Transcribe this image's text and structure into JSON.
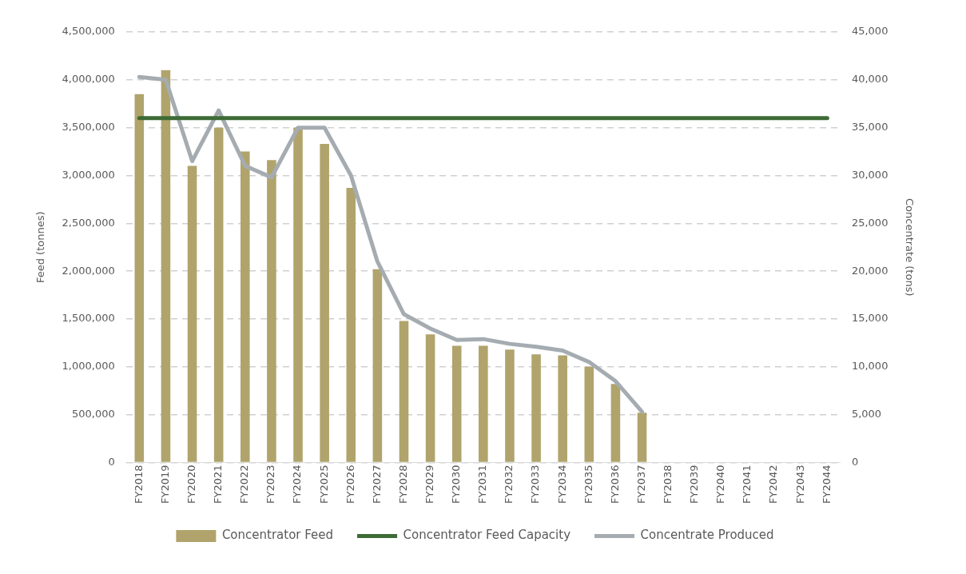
{
  "chart_data": {
    "type": "bar",
    "categories": [
      "FY2018",
      "FY2019",
      "FY2020",
      "FY2021",
      "FY2022",
      "FY2023",
      "FY2024",
      "FY2025",
      "FY2026",
      "FY2027",
      "FY2028",
      "FY2029",
      "FY2030",
      "FY2031",
      "FY2032",
      "FY2033",
      "FY2034",
      "FY2035",
      "FY2036",
      "FY2037",
      "FY2038",
      "FY2039",
      "FY2040",
      "FY2041",
      "FY2042",
      "FY2043",
      "FY2044"
    ],
    "ylabel": "Feed (tonnes)",
    "y2label": "Concentrate (tons)",
    "ylim": [
      0,
      4500000
    ],
    "yticks": [
      0,
      {
        "value": 500000,
        "label": "500,000"
      },
      {
        "value": 1000000,
        "label": "1,000,000"
      },
      {
        "value": 1500000,
        "label": "1,500,000"
      },
      {
        "value": 2000000,
        "label": "2,000,000"
      },
      {
        "value": 2500000,
        "label": "2,500,000"
      },
      {
        "value": 3000000,
        "label": "3,000,000"
      },
      {
        "value": 3500000,
        "label": "3,500,000"
      },
      {
        "value": 4000000,
        "label": "4,000,000"
      },
      {
        "value": 4500000,
        "label": "4,500,000"
      }
    ],
    "y2lim": [
      0,
      45000
    ],
    "y2ticks": [
      0,
      {
        "value": 5000,
        "label": "5,000"
      },
      {
        "value": 10000,
        "label": "10,000"
      },
      {
        "value": 15000,
        "label": "15,000"
      },
      {
        "value": 20000,
        "label": "20,000"
      },
      {
        "value": 25000,
        "label": "25,000"
      },
      {
        "value": 30000,
        "label": "30,000"
      },
      {
        "value": 35000,
        "label": "35,000"
      },
      {
        "value": 40000,
        "label": "40,000"
      },
      {
        "value": 45000,
        "label": "45,000"
      }
    ],
    "grid": "y",
    "legend": "bottom",
    "marker": "none",
    "series": [
      {
        "name": "Concentrator Feed",
        "color": "#b0a46c",
        "values": [
          3850000,
          4100000,
          3100000,
          3500000,
          3250000,
          3160000,
          3500000,
          3330000,
          2870000,
          2020000,
          1480000,
          1340000,
          1220000,
          1220000,
          1180000,
          1130000,
          1120000,
          1000000,
          820000,
          520000,
          null,
          null,
          null,
          null,
          null,
          null,
          null
        ]
      },
      {
        "name": "Concentrator Feed Capacity",
        "type": "line",
        "axis": "y2",
        "color": "#3d6b35",
        "values": [
          36000,
          36000,
          36000,
          36000,
          36000,
          36000,
          36000,
          36000,
          36000,
          36000,
          36000,
          36000,
          36000,
          36000,
          36000,
          36000,
          36000,
          36000,
          36000,
          36000,
          36000,
          36000,
          36000,
          36000,
          36000,
          36000,
          36000
        ]
      },
      {
        "name": "Concentrate Produced",
        "type": "line",
        "axis": "y2",
        "color": "#a5acb1",
        "values": [
          40300,
          40000,
          31500,
          36800,
          31000,
          29800,
          35000,
          35000,
          30000,
          21000,
          15500,
          14000,
          12800,
          12900,
          12400,
          12100,
          11700,
          10500,
          8500,
          5300,
          null,
          null,
          null,
          null,
          null,
          null,
          null
        ]
      }
    ]
  }
}
